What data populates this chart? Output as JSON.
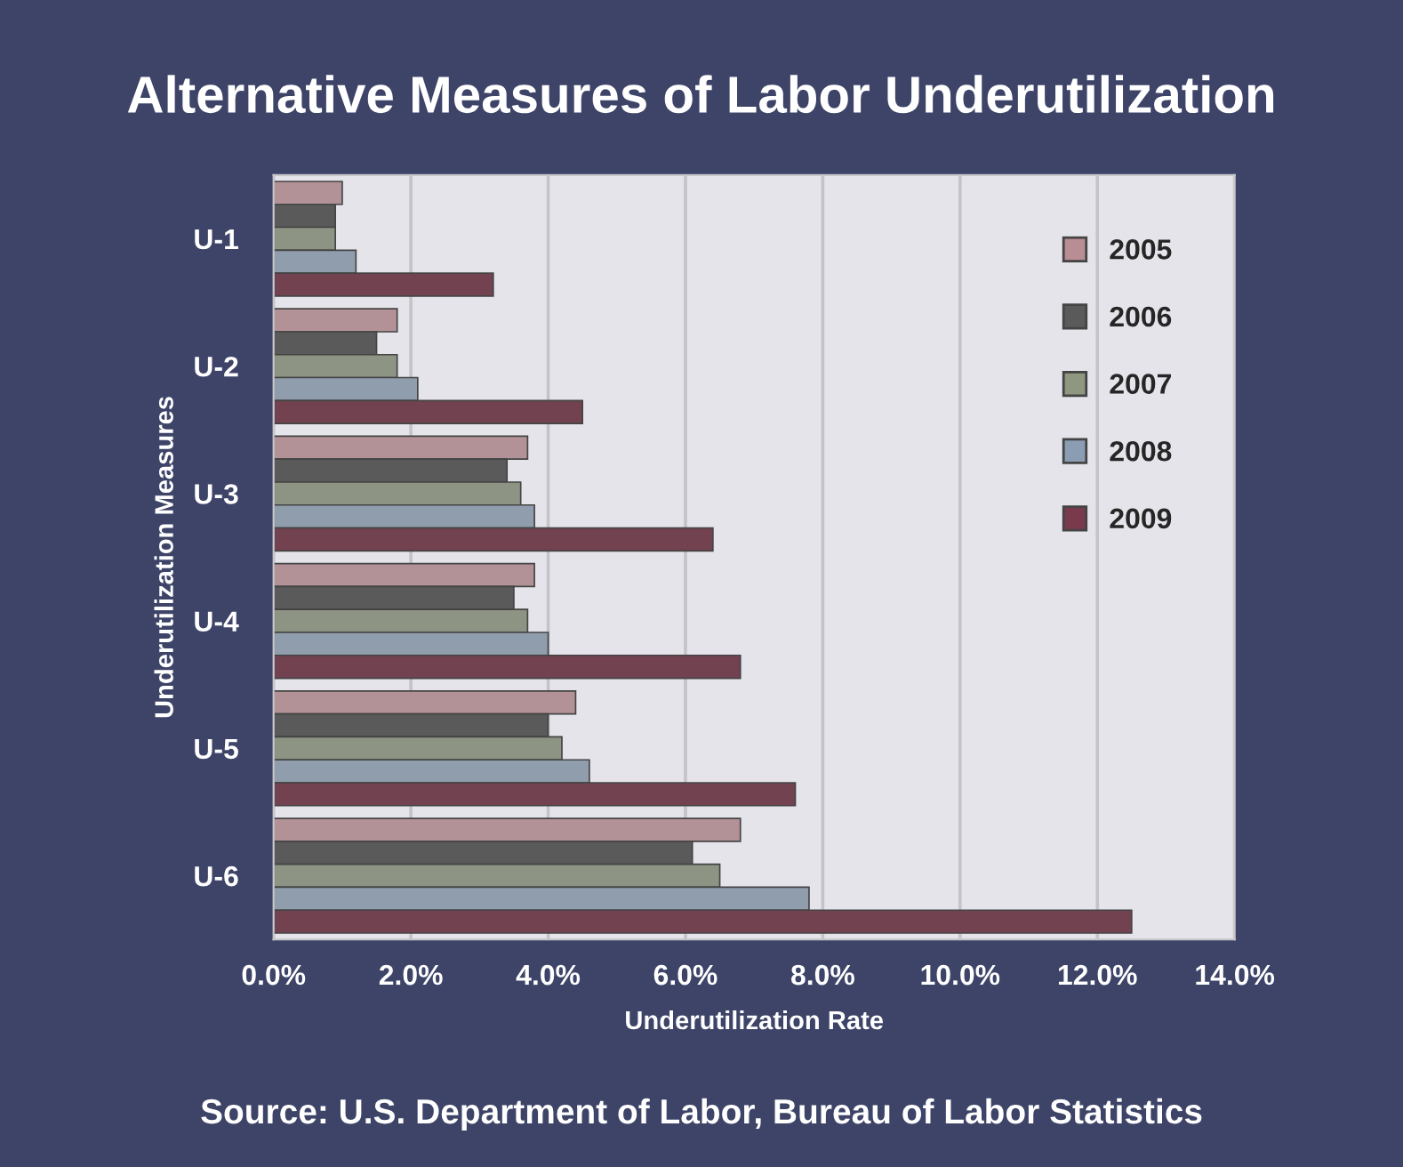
{
  "chart_data": {
    "type": "bar",
    "orientation": "horizontal",
    "title": "Alternative Measures of Labor Underutilization",
    "xlabel": "Underutilization Rate",
    "ylabel": "Underutilization Measures",
    "categories": [
      "U-1",
      "U-2",
      "U-3",
      "U-4",
      "U-5",
      "U-6"
    ],
    "series": [
      {
        "name": "2005",
        "color": "#b88d93",
        "values": [
          1.0,
          1.8,
          3.7,
          3.8,
          4.4,
          6.8
        ]
      },
      {
        "name": "2006",
        "color": "#5a5a5a",
        "values": [
          0.9,
          1.5,
          3.4,
          3.5,
          4.0,
          6.1
        ]
      },
      {
        "name": "2007",
        "color": "#8f9780",
        "values": [
          0.9,
          1.8,
          3.6,
          3.7,
          4.2,
          6.5
        ]
      },
      {
        "name": "2008",
        "color": "#8b9db2",
        "values": [
          1.2,
          2.1,
          3.8,
          4.0,
          4.6,
          7.8
        ]
      },
      {
        "name": "2009",
        "color": "#7a3a4e",
        "values": [
          3.2,
          4.5,
          6.4,
          6.8,
          7.6,
          12.5
        ]
      }
    ],
    "xlim": [
      0,
      14
    ],
    "xticks": [
      {
        "value": 0,
        "label": "0.0%"
      },
      {
        "value": 2,
        "label": "2.0%"
      },
      {
        "value": 4,
        "label": "4.0%"
      },
      {
        "value": 6,
        "label": "6.0%"
      },
      {
        "value": 8,
        "label": "8.0%"
      },
      {
        "value": 10,
        "label": "10.0%"
      },
      {
        "value": 12,
        "label": "12.0%"
      },
      {
        "value": 14,
        "label": "14.0%"
      }
    ],
    "grid": "x",
    "legend": "top right",
    "annotations": [
      "Source: U.S. Department of Labor, Bureau of Labor Statistics"
    ]
  }
}
